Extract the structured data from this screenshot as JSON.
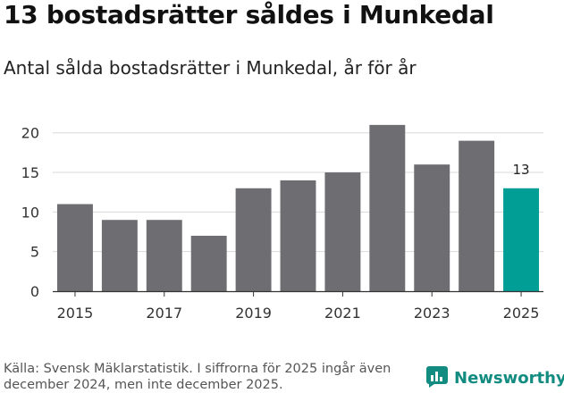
{
  "title": "13 bostadsrätter såldes i Munkedal",
  "subtitle": "Antal sålda bostadsrätter i Munkedal, år för år",
  "source": "Källa: Svensk Mäklarstatistik. I siffrorna för 2025 ingår även december 2024, men inte december 2025.",
  "brand": {
    "name": "Newsworthy",
    "icon": "bar-chart-icon"
  },
  "colors": {
    "bar": "#6e6d71",
    "highlight": "#009e94",
    "grid": "#d9d9d9",
    "axis": "#333333"
  },
  "chart_data": {
    "type": "bar",
    "title": "13 bostadsrätter såldes i Munkedal",
    "xlabel": "",
    "ylabel": "",
    "categories": [
      "2015",
      "2016",
      "2017",
      "2018",
      "2019",
      "2020",
      "2021",
      "2022",
      "2023",
      "2024",
      "2025"
    ],
    "values": [
      11,
      9,
      9,
      7,
      13,
      14,
      15,
      21,
      16,
      19,
      13
    ],
    "x_tick_labels": [
      "2015",
      "2017",
      "2019",
      "2021",
      "2023",
      "2025"
    ],
    "y_ticks": [
      0,
      5,
      10,
      15,
      20
    ],
    "ylim": [
      0,
      22
    ],
    "grid": true,
    "highlight_category": "2025",
    "data_labels": [
      {
        "category": "2025",
        "label": "13"
      }
    ]
  }
}
